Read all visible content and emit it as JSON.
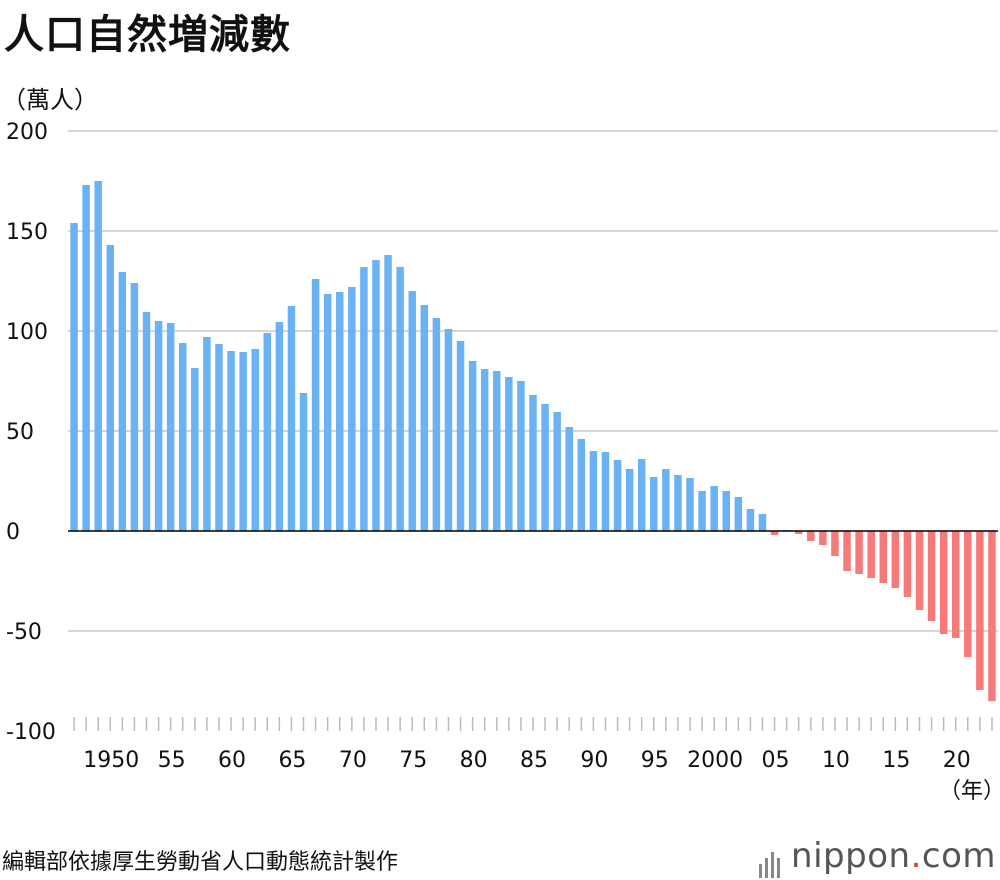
{
  "title": "人口自然増減數",
  "unit_label": "（萬人）",
  "year_unit": "（年）",
  "source": "編輯部依據厚生勞動省人口動態統計製作",
  "brand": {
    "name": "nippon",
    "dot": ".",
    "suffix": "com"
  },
  "colors": {
    "positive": "#6bb2f5",
    "negative": "#f77a7a",
    "grid": "#c8c8c8",
    "axis": "#000000"
  },
  "chart_data": {
    "type": "bar",
    "xlabel": "（年）",
    "ylabel": "（萬人）",
    "ylim": [
      -100,
      200
    ],
    "yticks": [
      200,
      150,
      100,
      50,
      0,
      -50,
      -100
    ],
    "grid": true,
    "x_tick_labels": [
      {
        "year": 1950,
        "label": "1950"
      },
      {
        "year": 1955,
        "label": "55"
      },
      {
        "year": 1960,
        "label": "60"
      },
      {
        "year": 1965,
        "label": "65"
      },
      {
        "year": 1970,
        "label": "70"
      },
      {
        "year": 1975,
        "label": "75"
      },
      {
        "year": 1980,
        "label": "80"
      },
      {
        "year": 1985,
        "label": "85"
      },
      {
        "year": 1990,
        "label": "90"
      },
      {
        "year": 1995,
        "label": "95"
      },
      {
        "year": 2000,
        "label": "2000"
      },
      {
        "year": 2005,
        "label": "05"
      },
      {
        "year": 2010,
        "label": "10"
      },
      {
        "year": 2015,
        "label": "15"
      },
      {
        "year": 2020,
        "label": "20"
      }
    ],
    "years": [
      1947,
      1948,
      1949,
      1950,
      1951,
      1952,
      1953,
      1954,
      1955,
      1956,
      1957,
      1958,
      1959,
      1960,
      1961,
      1962,
      1963,
      1964,
      1965,
      1966,
      1967,
      1968,
      1969,
      1970,
      1971,
      1972,
      1973,
      1974,
      1975,
      1976,
      1977,
      1978,
      1979,
      1980,
      1981,
      1982,
      1983,
      1984,
      1985,
      1986,
      1987,
      1988,
      1989,
      1990,
      1991,
      1992,
      1993,
      1994,
      1995,
      1996,
      1997,
      1998,
      1999,
      2000,
      2001,
      2002,
      2003,
      2004,
      2005,
      2006,
      2007,
      2008,
      2009,
      2010,
      2011,
      2012,
      2013,
      2014,
      2015,
      2016,
      2017,
      2018,
      2019,
      2020,
      2021,
      2022,
      2023
    ],
    "values": [
      154,
      173,
      175,
      143,
      129.5,
      124,
      109.5,
      105,
      104,
      94,
      81.5,
      97,
      93.5,
      90,
      89.5,
      91,
      99,
      104.5,
      112.5,
      69,
      126,
      118.5,
      119.5,
      122,
      132,
      135.5,
      138,
      132,
      120,
      113,
      106.5,
      101,
      95,
      85,
      81,
      80,
      77,
      75,
      68,
      63.5,
      59.5,
      52,
      46,
      40,
      39.5,
      35.5,
      31,
      36,
      27,
      31,
      28,
      26.5,
      20,
      22.5,
      20,
      17,
      11,
      8.5,
      -2,
      0.5,
      -1.5,
      -5,
      -7,
      -12.5,
      -20,
      -21.5,
      -23.5,
      -26,
      -28.5,
      -33,
      -39.5,
      -45,
      -51.5,
      -53.5,
      -63,
      -79.5,
      -85
    ]
  }
}
